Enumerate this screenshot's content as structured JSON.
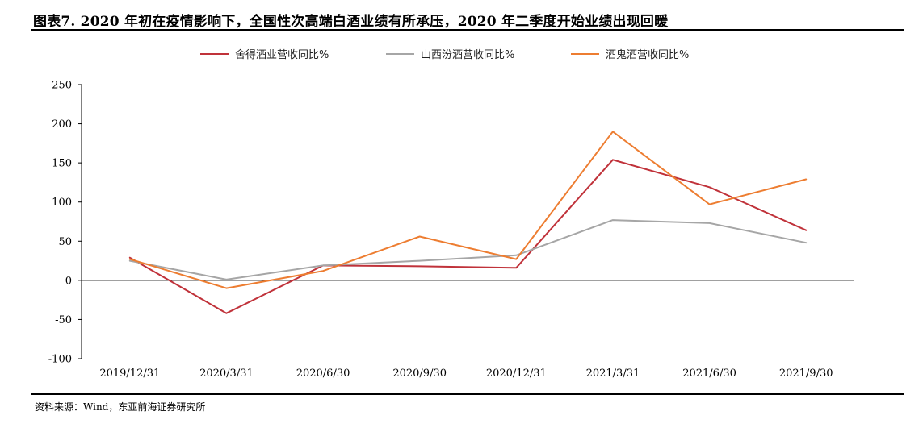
{
  "header": {
    "title": "图表7.   2020 年初在疫情影响下，全国性次高端白酒业绩有所承压，2020 年二季度开始业绩出现回暖"
  },
  "footer": {
    "source": "资料来源：Wind，东亚前海证券研究所"
  },
  "chart_data": {
    "type": "line",
    "x": [
      "2019/12/31",
      "2020/3/31",
      "2020/6/30",
      "2020/9/30",
      "2020/12/31",
      "2021/3/31",
      "2021/6/30",
      "2021/9/30"
    ],
    "ylim": [
      -100,
      250
    ],
    "yticks": [
      250,
      200,
      150,
      100,
      50,
      0,
      -50,
      -100
    ],
    "yticklabels": [
      "250",
      "200",
      "150",
      "100",
      "50",
      "0",
      "-50",
      "-100"
    ],
    "legend_position": "top-center",
    "grid": false,
    "series": [
      {
        "name": "舍得酒业营收同比%",
        "color": "#C0323A",
        "values": [
          29,
          -42,
          19,
          18,
          16,
          154,
          119,
          64
        ]
      },
      {
        "name": "山西汾酒营收同比%",
        "color": "#A6A6A6",
        "values": [
          25,
          1,
          19,
          25,
          32,
          77,
          73,
          48
        ]
      },
      {
        "name": "酒鬼酒营收同比%",
        "color": "#ED7D31",
        "values": [
          27,
          -10,
          12,
          56,
          27,
          190,
          97,
          129
        ]
      }
    ]
  }
}
